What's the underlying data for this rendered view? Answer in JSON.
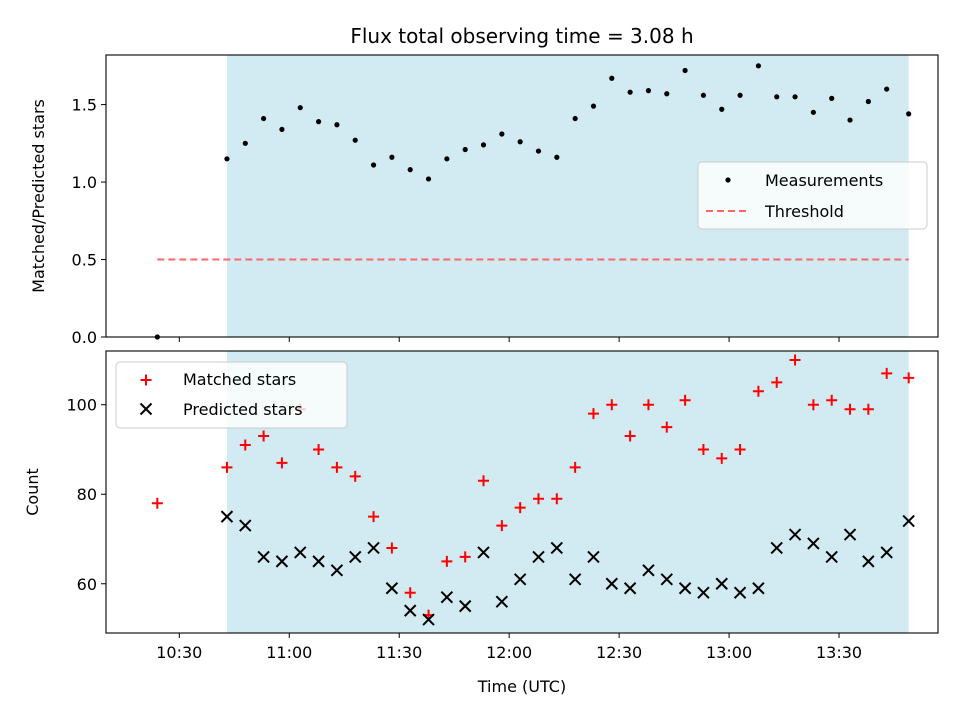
{
  "chart_data": [
    {
      "type": "scatter",
      "title": "Flux total observing time = 3.08 h",
      "ylabel": "Matched/Predicted stars",
      "xlabel": "",
      "ylim": [
        0,
        1.82
      ],
      "yticks": [
        0.0,
        0.5,
        1.0,
        1.5
      ],
      "ytick_labels": [
        "0.0",
        "0.5",
        "1.0",
        "1.5"
      ],
      "x_range": [
        "10:10",
        "13:57"
      ],
      "highlight_span": [
        "10:43",
        "13:49"
      ],
      "highlight_color": "#add8e6",
      "legend_position": "center-right",
      "series": [
        {
          "name": "Measurements",
          "marker": "dot",
          "color": "#000000",
          "x": [
            "10:24",
            "10:43",
            "10:48",
            "10:53",
            "10:58",
            "11:03",
            "11:08",
            "11:13",
            "11:18",
            "11:23",
            "11:28",
            "11:33",
            "11:38",
            "11:43",
            "11:48",
            "11:53",
            "11:58",
            "12:03",
            "12:08",
            "12:13",
            "12:18",
            "12:23",
            "12:28",
            "12:33",
            "12:38",
            "12:43",
            "12:48",
            "12:53",
            "12:58",
            "13:03",
            "13:08",
            "13:13",
            "13:18",
            "13:23",
            "13:28",
            "13:33",
            "13:38",
            "13:43",
            "13:49"
          ],
          "y": [
            0.0,
            1.15,
            1.25,
            1.41,
            1.34,
            1.48,
            1.39,
            1.37,
            1.27,
            1.11,
            1.16,
            1.08,
            1.02,
            1.15,
            1.21,
            1.24,
            1.31,
            1.26,
            1.2,
            1.16,
            1.41,
            1.49,
            1.67,
            1.58,
            1.59,
            1.57,
            1.72,
            1.56,
            1.47,
            1.56,
            1.75,
            1.55,
            1.55,
            1.45,
            1.54,
            1.4,
            1.52,
            1.6,
            1.44
          ]
        },
        {
          "name": "Threshold",
          "line_style": "dashed",
          "color": "#ff6666",
          "x": [
            "10:24",
            "13:49"
          ],
          "y": [
            0.5,
            0.5
          ]
        }
      ]
    },
    {
      "type": "scatter",
      "title": "",
      "ylabel": "Count",
      "xlabel": "Time (UTC)",
      "ylim": [
        49,
        112
      ],
      "yticks": [
        60,
        80,
        100
      ],
      "ytick_labels": [
        "60",
        "80",
        "100"
      ],
      "x_range": [
        "10:10",
        "13:57"
      ],
      "xticks": [
        "10:30",
        "11:00",
        "11:30",
        "12:00",
        "12:30",
        "13:00",
        "13:30"
      ],
      "highlight_span": [
        "10:43",
        "13:49"
      ],
      "highlight_color": "#add8e6",
      "legend_position": "top-left",
      "series": [
        {
          "name": "Matched stars",
          "marker": "plus",
          "color": "#ff0000",
          "x": [
            "10:24",
            "10:43",
            "10:48",
            "10:53",
            "10:58",
            "11:03",
            "11:08",
            "11:13",
            "11:18",
            "11:23",
            "11:28",
            "11:33",
            "11:38",
            "11:43",
            "11:48",
            "11:53",
            "11:58",
            "12:03",
            "12:08",
            "12:13",
            "12:18",
            "12:23",
            "12:28",
            "12:33",
            "12:38",
            "12:43",
            "12:48",
            "12:53",
            "12:58",
            "13:03",
            "13:08",
            "13:13",
            "13:18",
            "13:23",
            "13:28",
            "13:33",
            "13:38",
            "13:43",
            "13:49"
          ],
          "y": [
            78,
            86,
            91,
            93,
            87,
            99,
            90,
            86,
            84,
            75,
            68,
            58,
            53,
            65,
            66,
            83,
            73,
            77,
            79,
            79,
            86,
            98,
            100,
            93,
            100,
            95,
            101,
            90,
            88,
            90,
            103,
            105,
            110,
            100,
            101,
            99,
            99,
            107,
            106
          ]
        },
        {
          "name": "Predicted stars",
          "marker": "x",
          "color": "#000000",
          "x": [
            "10:43",
            "10:48",
            "10:53",
            "10:58",
            "11:03",
            "11:08",
            "11:13",
            "11:18",
            "11:23",
            "11:28",
            "11:33",
            "11:38",
            "11:43",
            "11:48",
            "11:53",
            "11:58",
            "12:03",
            "12:08",
            "12:13",
            "12:18",
            "12:23",
            "12:28",
            "12:33",
            "12:38",
            "12:43",
            "12:48",
            "12:53",
            "12:58",
            "13:03",
            "13:08",
            "13:13",
            "13:18",
            "13:23",
            "13:28",
            "13:33",
            "13:38",
            "13:43",
            "13:49"
          ],
          "y": [
            75,
            73,
            66,
            65,
            67,
            65,
            63,
            66,
            68,
            59,
            54,
            52,
            57,
            55,
            67,
            56,
            61,
            66,
            68,
            61,
            66,
            60,
            59,
            63,
            61,
            59,
            58,
            60,
            58,
            59,
            68,
            71,
            69,
            66,
            71,
            65,
            67,
            74
          ]
        }
      ]
    }
  ]
}
